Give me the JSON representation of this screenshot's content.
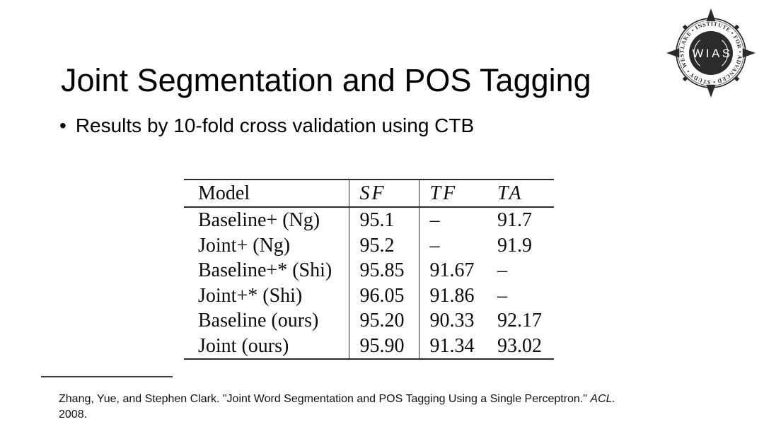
{
  "slide": {
    "title": "Joint Segmentation and POS Tagging",
    "bullet_marker": "•",
    "bullet_text": "Results by 10-fold cross validation using CTB"
  },
  "table": {
    "headers": [
      "Model",
      "SF",
      "TF",
      "TA"
    ],
    "rows": [
      [
        "Baseline+ (Ng)",
        "95.1",
        "–",
        "91.7"
      ],
      [
        "Joint+ (Ng)",
        "95.2",
        "–",
        "91.9"
      ],
      [
        "Baseline+* (Shi)",
        "95.85",
        "91.67",
        "–"
      ],
      [
        "Joint+* (Shi)",
        "96.05",
        "91.86",
        "–"
      ],
      [
        "Baseline (ours)",
        "95.20",
        "90.33",
        "92.17"
      ],
      [
        "Joint (ours)",
        "95.90",
        "91.34",
        "93.02"
      ]
    ]
  },
  "citation": {
    "line1_plain": "Zhang, Yue, and Stephen Clark. \"Joint Word Segmentation and POS Tagging Using a Single Perceptron.\" ",
    "line1_journal": "ACL.",
    "line2": "2008."
  },
  "logo": {
    "acronym": "WIAS",
    "ring_text": "WESTLAKE • INSTITUTE • FOR • ADVANCED • STUDY •",
    "color": "#2b2b2b"
  }
}
